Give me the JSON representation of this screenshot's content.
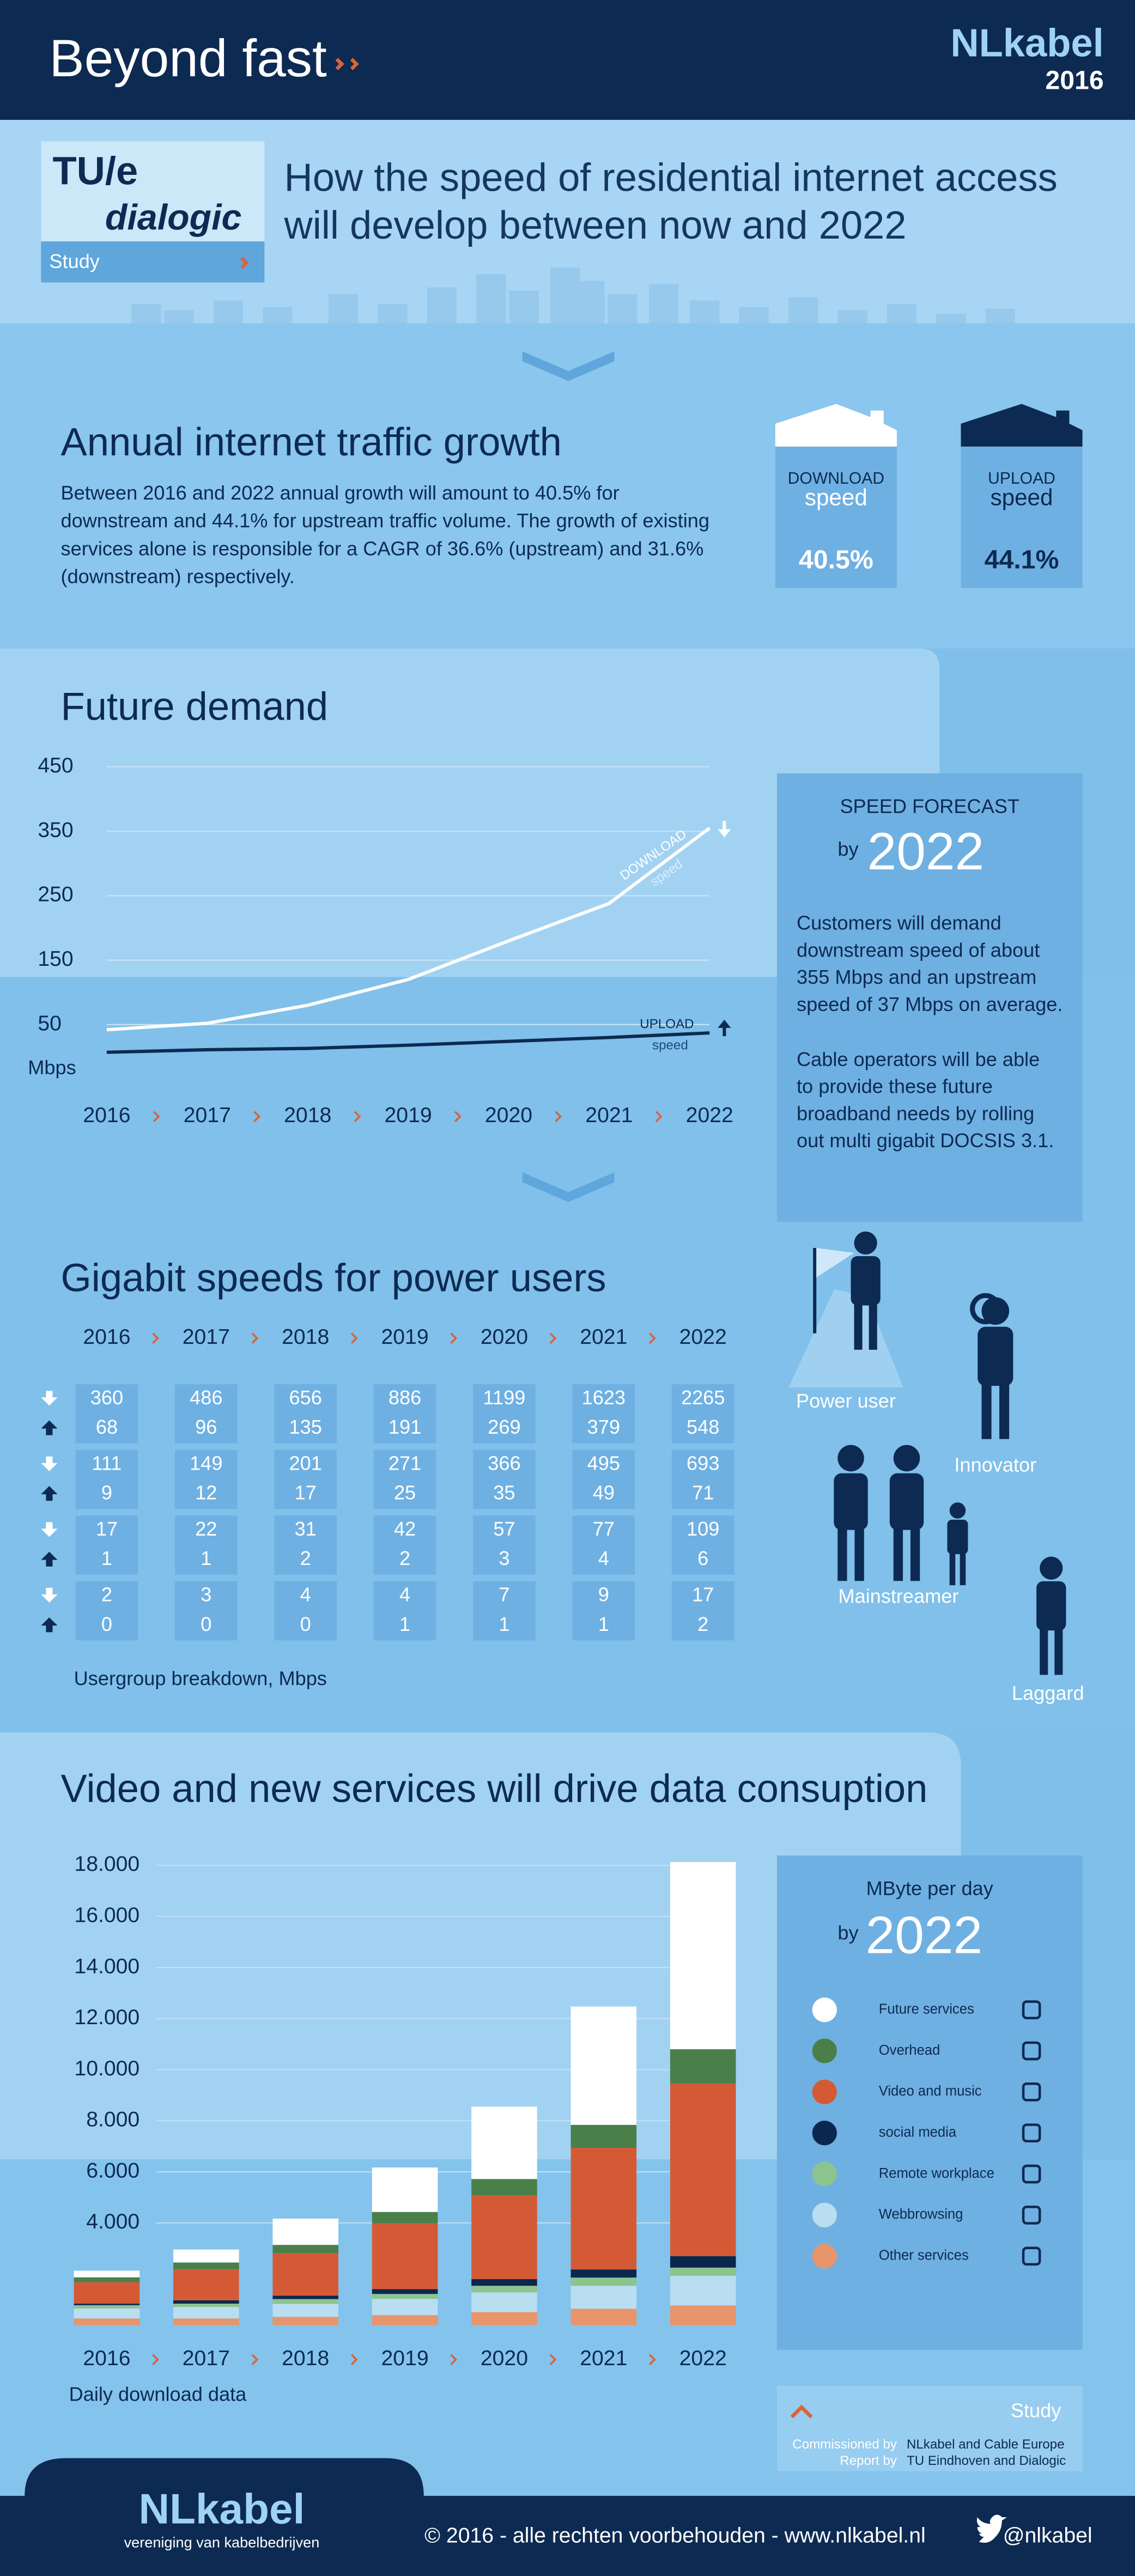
{
  "header": {
    "title": "Beyond fast",
    "brand": "NLkabel",
    "year": "2016"
  },
  "intro": {
    "logo_top": "TU/e",
    "logo_bottom": "dialogic",
    "study": "Study",
    "title_lines": [
      "How the speed of residential internet access",
      "will develop between now and 2022"
    ]
  },
  "traffic": {
    "title": "Annual internet traffic growth",
    "text_lines": [
      "Between 2016 and 2022 annual growth will  amount to 40.5% for",
      "downstream and 44.1% for upstream traffic volume. The growth of existing",
      "services alone is responsible for a CAGR of  36.6%  (upstream) and  31.6%",
      "(downstream) respectively."
    ],
    "download": {
      "label": "DOWNLOAD",
      "sub": "speed",
      "value": "40.5%"
    },
    "upload": {
      "label": "UPLOAD",
      "sub": "speed",
      "value": "44.1%"
    }
  },
  "forecast": {
    "title": "SPEED FORECAST",
    "by": "by",
    "year": "2022",
    "paragraphs": [
      [
        "Customers will demand",
        "downstream speed of about",
        "355 Mbps  and an upstream",
        "speed of 37 Mbps on average."
      ],
      [
        "Cable operators will be able",
        "to provide these future",
        "broadband needs by rolling",
        "out multi gigabit DOCSIS 3.1."
      ]
    ]
  },
  "gigabit": {
    "title": "Gigabit speeds for power users",
    "years": [
      "2016",
      "2017",
      "2018",
      "2019",
      "2020",
      "2021",
      "2022"
    ],
    "rows": [
      {
        "down": [
          360,
          486,
          656,
          886,
          1199,
          1623,
          2265
        ],
        "up": [
          68,
          96,
          135,
          191,
          269,
          379,
          548
        ]
      },
      {
        "down": [
          111,
          149,
          201,
          271,
          366,
          495,
          693
        ],
        "up": [
          9,
          12,
          17,
          25,
          35,
          49,
          71
        ]
      },
      {
        "down": [
          17,
          22,
          31,
          42,
          57,
          77,
          109
        ],
        "up": [
          1,
          1,
          2,
          2,
          3,
          4,
          6
        ]
      },
      {
        "down": [
          2,
          3,
          4,
          4,
          7,
          9,
          17
        ],
        "up": [
          0,
          0,
          0,
          1,
          1,
          1,
          2
        ]
      }
    ],
    "caption": "Usergroup breakdown, Mbps",
    "users": [
      "Power user",
      "Innovator",
      "Mainstreamer",
      "Laggard"
    ]
  },
  "legend_box": {
    "title": "MByte per day",
    "by": "by",
    "year": "2022"
  },
  "study": {
    "label": "Study",
    "commissioned_label": "Commissioned by",
    "commissioned": "NLkabel and Cable Europe",
    "report_label": "Report by",
    "report": "TU Eindhoven and Dialogic"
  },
  "footer": {
    "brand": "NLkabel",
    "tagline": "vereniging van kabelbedrijven",
    "copyright": "© 2016 - alle rechten voorbehouden - www.nlkabel.nl",
    "twitter": "@nlkabel"
  },
  "chart_data": [
    {
      "type": "line",
      "title": "Future demand",
      "ylabel": "Mbps",
      "categories": [
        "2016",
        "2017",
        "2018",
        "2019",
        "2020",
        "2021",
        "2022"
      ],
      "ylim": [
        0,
        450
      ],
      "yticks": [
        50,
        150,
        250,
        350,
        450
      ],
      "grid": true,
      "series": [
        {
          "name": "DOWNLOAD",
          "annotation": "speed",
          "color": "#ffffff",
          "values": [
            42,
            52,
            80,
            120,
            180,
            238,
            355
          ]
        },
        {
          "name": "UPLOAD",
          "annotation": "speed",
          "color": "#0d2a52",
          "values": [
            7,
            11,
            13,
            18,
            24,
            30,
            37
          ]
        }
      ]
    },
    {
      "type": "stacked_bar",
      "title": "Video and new services will drive data consuption",
      "xlabel": "Daily download data",
      "categories": [
        "2016",
        "2017",
        "2018",
        "2019",
        "2020",
        "2021",
        "2022"
      ],
      "ylim": [
        0,
        18000
      ],
      "grid": true,
      "yticks": [
        {
          "value": 4000,
          "label": "4.000"
        },
        {
          "value": 6000,
          "label": "6.000"
        },
        {
          "value": 8000,
          "label": "8.000"
        },
        {
          "value": 10000,
          "label": "10.000"
        },
        {
          "value": 12000,
          "label": "12.000"
        },
        {
          "value": 14000,
          "label": "14.000"
        },
        {
          "value": 16000,
          "label": "16.000"
        },
        {
          "value": 18000,
          "label": "18.000"
        }
      ],
      "series": [
        {
          "name": "Future services",
          "color": "#ffffff",
          "values": [
            260,
            510,
            1030,
            1740,
            2830,
            4630,
            7330
          ]
        },
        {
          "name": "Overhead",
          "color": "#4a7f4a",
          "values": [
            190,
            260,
            320,
            450,
            640,
            900,
            1350
          ]
        },
        {
          "name": "Video and music",
          "color": "#d45a35",
          "values": [
            840,
            1220,
            1670,
            2570,
            3280,
            4760,
            6750
          ]
        },
        {
          "name": "social media",
          "color": "#0b2750",
          "values": [
            60,
            130,
            130,
            190,
            260,
            320,
            450
          ]
        },
        {
          "name": "Remote workplace",
          "color": "#8cc48e",
          "values": [
            130,
            130,
            190,
            190,
            260,
            320,
            320
          ]
        },
        {
          "name": "Webbrowsing",
          "color": "#b9def2",
          "values": [
            390,
            450,
            510,
            640,
            770,
            900,
            1160
          ]
        },
        {
          "name": "Other services",
          "color": "#e8956b",
          "values": [
            260,
            260,
            320,
            390,
            510,
            640,
            770
          ]
        }
      ]
    }
  ]
}
